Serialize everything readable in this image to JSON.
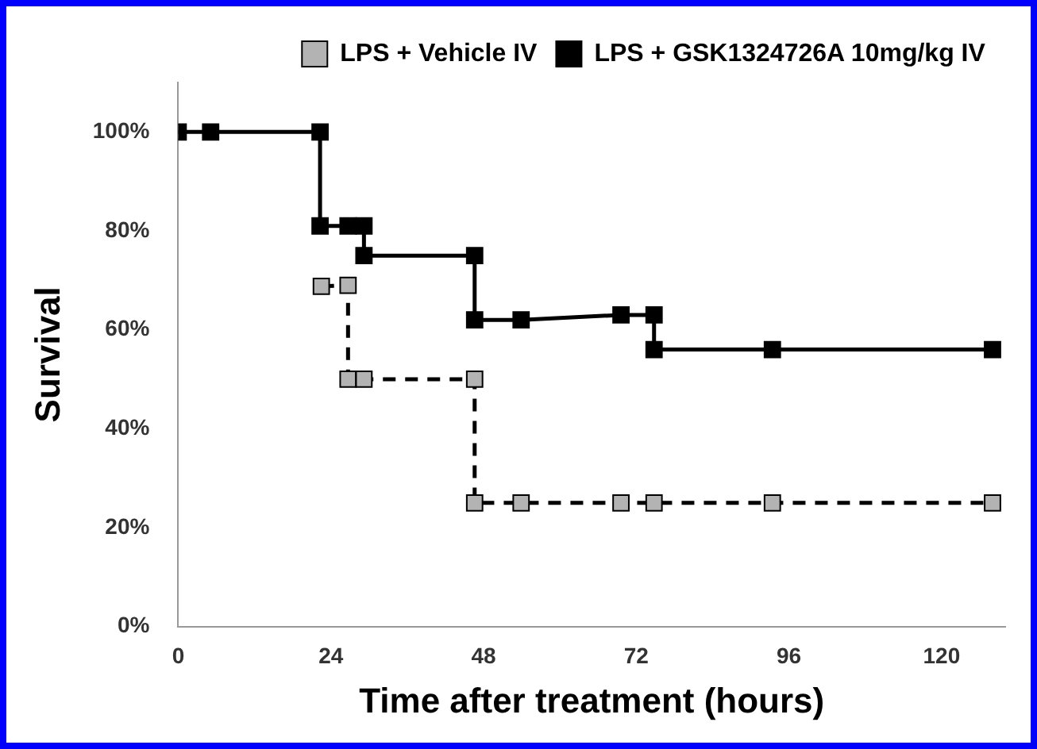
{
  "chart_data": {
    "type": "line",
    "xlabel": "Time after treatment (hours)",
    "ylabel": "Survival",
    "xlim": [
      0,
      130
    ],
    "ylim": [
      0,
      110
    ],
    "xticks": [
      0,
      24,
      48,
      72,
      96,
      120
    ],
    "yticks": [
      {
        "value": 0,
        "label": "0%"
      },
      {
        "value": 20,
        "label": "20%"
      },
      {
        "value": 40,
        "label": "40%"
      },
      {
        "value": 60,
        "label": "60%"
      },
      {
        "value": 80,
        "label": "80%"
      },
      {
        "value": 100,
        "label": "100%"
      }
    ],
    "series": [
      {
        "name": "LPS + Vehicle IV",
        "color": "#b3b3b3",
        "line_style": "dashed",
        "x": [
          22.5,
          26.7,
          26.7,
          29.2,
          46.6,
          46.6,
          53.9,
          69.6,
          74.8,
          93.4,
          128
        ],
        "values": [
          68.8,
          69,
          50,
          50,
          50,
          25,
          25,
          25,
          25,
          25,
          25
        ]
      },
      {
        "name": "LPS + GSK1324726A 10mg/kg IV",
        "color": "#000000",
        "line_style": "solid",
        "x": [
          0,
          5.1,
          22.3,
          22.3,
          26.7,
          29.2,
          29.2,
          46.6,
          46.6,
          53.9,
          69.6,
          74.8,
          74.8,
          93.4,
          128
        ],
        "values": [
          100,
          100,
          100,
          81,
          81,
          81,
          75,
          75,
          62,
          62,
          63,
          63,
          56,
          56,
          56
        ]
      }
    ],
    "marker": "square",
    "grid": false,
    "legend": "top right"
  }
}
